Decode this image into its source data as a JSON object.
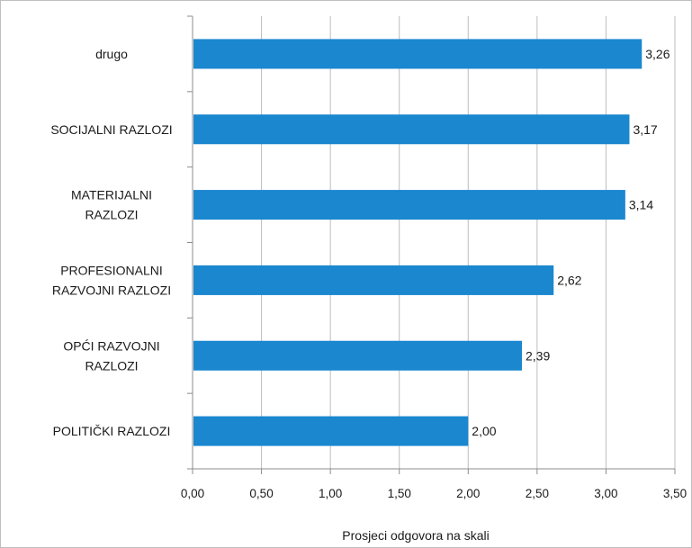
{
  "chart_data": {
    "type": "bar",
    "orientation": "horizontal",
    "categories": [
      [
        "drugo"
      ],
      [
        "SOCIJALNI RAZLOZI"
      ],
      [
        "MATERIJALNI",
        "RAZLOZI"
      ],
      [
        "PROFESIONALNI",
        "RAZVOJNI RAZLOZI"
      ],
      [
        "OPĆI RAZVOJNI",
        "RAZLOZI"
      ],
      [
        "POLITIČKI RAZLOZI"
      ]
    ],
    "values": [
      3.26,
      3.17,
      3.14,
      2.62,
      2.39,
      2.0
    ],
    "data_labels": [
      "3,26",
      "3,17",
      "3,14",
      "2,62",
      "2,39",
      "2,00"
    ],
    "xlim": [
      0,
      3.5
    ],
    "x_ticks": [
      0,
      0.5,
      1.0,
      1.5,
      2.0,
      2.5,
      3.0,
      3.5
    ],
    "x_tick_labels": [
      "0,00",
      "0,50",
      "1,00",
      "1,50",
      "2,00",
      "2,50",
      "3,00",
      "3,50"
    ],
    "xlabel": "Prosjeci odgovora na skali",
    "ylabel": "",
    "title": "",
    "grid": "vertical",
    "legend": "none",
    "bar_color": "#1a87cf",
    "grid_color": "#bdbdbd"
  }
}
